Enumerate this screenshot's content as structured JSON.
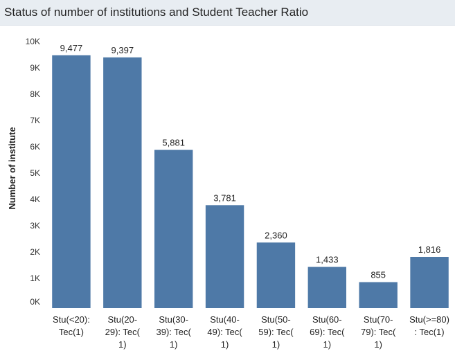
{
  "chart_data": {
    "type": "bar",
    "title": "Status of number of institutions and Student Teacher Ratio",
    "xlabel": "",
    "ylabel": "Number of institute",
    "ylim": [
      0,
      10000
    ],
    "y_ticks": [
      0,
      1000,
      2000,
      3000,
      4000,
      5000,
      6000,
      7000,
      8000,
      9000,
      10000
    ],
    "y_tick_labels": [
      "0K",
      "1K",
      "2K",
      "3K",
      "4K",
      "5K",
      "6K",
      "7K",
      "8K",
      "9K",
      "10K"
    ],
    "categories": [
      "Stu(<20): Tec(1)",
      "Stu(20-29): Tec(1)",
      "Stu(30-39): Tec(1)",
      "Stu(40-49): Tec(1)",
      "Stu(50-59): Tec(1)",
      "Stu(60-69): Tec(1)",
      "Stu(70-79): Tec(1)",
      "Stu(>=80): Tec(1)"
    ],
    "category_label_lines": [
      [
        "Stu(<20):",
        "Tec(1)"
      ],
      [
        "Stu(20-",
        "29): Tec(",
        "1)"
      ],
      [
        "Stu(30-",
        "39): Tec(",
        "1)"
      ],
      [
        "Stu(40-",
        "49): Tec(",
        "1)"
      ],
      [
        "Stu(50-",
        "59): Tec(",
        "1)"
      ],
      [
        "Stu(60-",
        "69): Tec(",
        "1)"
      ],
      [
        "Stu(70-",
        "79): Tec(",
        "1)"
      ],
      [
        "Stu(>=80)",
        ": Tec(1)"
      ]
    ],
    "values": [
      9477,
      9397,
      5881,
      3781,
      2360,
      1433,
      855,
      1816
    ],
    "data_labels": [
      "9,477",
      "9,397",
      "5,881",
      "3,781",
      "2,360",
      "1,433",
      "855",
      "1,816"
    ],
    "bar_color": "#4e79a7",
    "grid": false,
    "legend": "none"
  }
}
